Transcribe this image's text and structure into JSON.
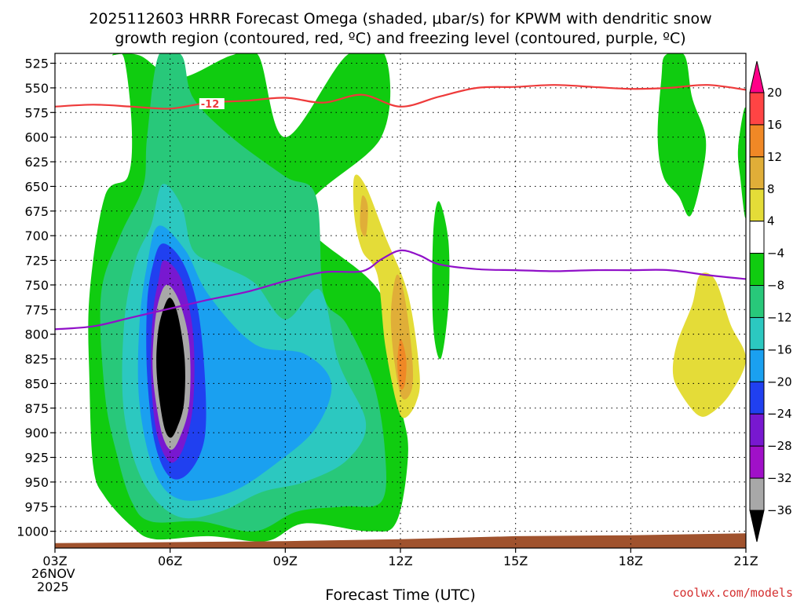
{
  "chart_data": {
    "type": "heatmap",
    "title_line1": "2025112603 HRRR Forecast Omega (shaded, μbar/s) for KPWM with dendritic snow",
    "title_line2": "growth region (contoured, red, ºC) and freezing level (contoured, purple, ºC)",
    "xlabel": "Forecast Time (UTC)",
    "x_ticks": [
      "03Z",
      "06Z",
      "09Z",
      "12Z",
      "15Z",
      "18Z",
      "21Z"
    ],
    "x_tick_hours": [
      3,
      6,
      9,
      12,
      15,
      18,
      21
    ],
    "x_date_line1": "26NOV",
    "x_date_line2": "2025",
    "xlim": [
      3,
      21
    ],
    "y_ticks": [
      "525",
      "550",
      "575",
      "600",
      "625",
      "650",
      "675",
      "700",
      "725",
      "750",
      "775",
      "800",
      "825",
      "850",
      "875",
      "900",
      "925",
      "950",
      "975",
      "1000"
    ],
    "y_tick_values": [
      525,
      550,
      575,
      600,
      625,
      650,
      675,
      700,
      725,
      750,
      775,
      800,
      825,
      850,
      875,
      900,
      925,
      950,
      975,
      1000
    ],
    "ylim": [
      515,
      1017
    ],
    "colorbar": {
      "labels": [
        "20",
        "16",
        "12",
        "8",
        "4",
        "−4",
        "−8",
        "−12",
        "−16",
        "−20",
        "−24",
        "−28",
        "−32",
        "−36"
      ],
      "colors_top_to_bottom": [
        "#ff0088",
        "#ff4444",
        "#f08826",
        "#e0ae38",
        "#e4dc38",
        "#ffffff",
        "#10cc10",
        "#28c87a",
        "#2cc8c0",
        "#1aa0f0",
        "#2040f0",
        "#7818d0",
        "#a010c8",
        "#a8a8a8",
        "#000000"
      ]
    },
    "dgz_contour": {
      "label": "-12",
      "color": "#ee3a3a",
      "points": [
        [
          3,
          569
        ],
        [
          4,
          567
        ],
        [
          5,
          569
        ],
        [
          6,
          571
        ],
        [
          7,
          565
        ],
        [
          8,
          563
        ],
        [
          9,
          560
        ],
        [
          10,
          565
        ],
        [
          11,
          557
        ],
        [
          12,
          569
        ],
        [
          13,
          559
        ],
        [
          14,
          550
        ],
        [
          15,
          549
        ],
        [
          16,
          547
        ],
        [
          17,
          549
        ],
        [
          18,
          551
        ],
        [
          19,
          550
        ],
        [
          20,
          547
        ],
        [
          21,
          552
        ]
      ]
    },
    "freezing_contour": {
      "color": "#9010c8",
      "points": [
        [
          3,
          795
        ],
        [
          4,
          792
        ],
        [
          5,
          783
        ],
        [
          6,
          774
        ],
        [
          7,
          765
        ],
        [
          8,
          757
        ],
        [
          9,
          746
        ],
        [
          10,
          737
        ],
        [
          11,
          736
        ],
        [
          11.5,
          724
        ],
        [
          12,
          715
        ],
        [
          12.5,
          720
        ],
        [
          13,
          729
        ],
        [
          14,
          734
        ],
        [
          15,
          735
        ],
        [
          16,
          736
        ],
        [
          17,
          735
        ],
        [
          18,
          735
        ],
        [
          19,
          735
        ],
        [
          20,
          740
        ],
        [
          21,
          744
        ]
      ]
    },
    "omega_regions": [
      {
        "value": -8,
        "color": "#10cc10",
        "points": [
          [
            4.5,
            517
          ],
          [
            5.2,
            517
          ],
          [
            6.2,
            540
          ],
          [
            7.6,
            517
          ],
          [
            8.3,
            517
          ],
          [
            9.0,
            600
          ],
          [
            10.6,
            517
          ],
          [
            11.6,
            517
          ],
          [
            11.5,
            600
          ],
          [
            9.5,
            680
          ],
          [
            11.5,
            760
          ],
          [
            12.0,
            870
          ],
          [
            12.2,
            920
          ],
          [
            11.9,
            990
          ],
          [
            11.2,
            1000
          ],
          [
            9.5,
            992
          ],
          [
            8.5,
            1010
          ],
          [
            7.0,
            1005
          ],
          [
            5.6,
            1008
          ],
          [
            5.0,
            995
          ],
          [
            4.3,
            965
          ],
          [
            4.0,
            935
          ],
          [
            3.9,
            850
          ],
          [
            3.9,
            760
          ],
          [
            4.3,
            660
          ],
          [
            4.9,
            640
          ],
          [
            5.0,
            590
          ],
          [
            4.8,
            520
          ]
        ]
      },
      {
        "value": -8,
        "color": "#10cc10",
        "points": [
          [
            13.0,
            665
          ],
          [
            13.25,
            705
          ],
          [
            13.25,
            770
          ],
          [
            13.05,
            825
          ],
          [
            12.85,
            790
          ],
          [
            12.85,
            700
          ]
        ]
      },
      {
        "value": -8,
        "color": "#10cc10",
        "points": [
          [
            18.9,
            517
          ],
          [
            19.4,
            517
          ],
          [
            19.6,
            560
          ],
          [
            19.95,
            600
          ],
          [
            19.85,
            640
          ],
          [
            19.55,
            680
          ],
          [
            19.25,
            660
          ],
          [
            18.85,
            640
          ],
          [
            18.7,
            600
          ],
          [
            18.8,
            540
          ]
        ]
      },
      {
        "value": -8,
        "color": "#10cc10",
        "points": [
          [
            21.0,
            572
          ],
          [
            21.0,
            680
          ],
          [
            20.85,
            640
          ],
          [
            20.8,
            610
          ]
        ]
      },
      {
        "value": -12,
        "color": "#28c87a",
        "points": [
          [
            5.7,
            517
          ],
          [
            6.3,
            517
          ],
          [
            6.6,
            560
          ],
          [
            7.6,
            600
          ],
          [
            9.0,
            640
          ],
          [
            9.8,
            660
          ],
          [
            10.0,
            760
          ],
          [
            10.6,
            790
          ],
          [
            11.3,
            850
          ],
          [
            11.6,
            920
          ],
          [
            11.5,
            970
          ],
          [
            10.5,
            975
          ],
          [
            9.3,
            980
          ],
          [
            8.2,
            1000
          ],
          [
            6.8,
            990
          ],
          [
            5.5,
            990
          ],
          [
            5.0,
            970
          ],
          [
            4.6,
            920
          ],
          [
            4.3,
            860
          ],
          [
            4.2,
            760
          ],
          [
            4.7,
            700
          ],
          [
            5.3,
            650
          ],
          [
            5.4,
            600
          ]
        ]
      },
      {
        "value": -16,
        "color": "#2cc8c0",
        "points": [
          [
            5.8,
            648
          ],
          [
            6.3,
            670
          ],
          [
            6.6,
            715
          ],
          [
            7.3,
            730
          ],
          [
            8.2,
            748
          ],
          [
            9.0,
            785
          ],
          [
            9.9,
            755
          ],
          [
            10.4,
            830
          ],
          [
            11.1,
            890
          ],
          [
            10.6,
            928
          ],
          [
            9.5,
            950
          ],
          [
            8.4,
            960
          ],
          [
            7.3,
            980
          ],
          [
            6.2,
            985
          ],
          [
            5.3,
            950
          ],
          [
            4.8,
            880
          ],
          [
            4.8,
            790
          ],
          [
            5.1,
            725
          ],
          [
            5.5,
            690
          ]
        ]
      },
      {
        "value": -20,
        "color": "#1aa0f0",
        "points": [
          [
            5.7,
            690
          ],
          [
            6.4,
            715
          ],
          [
            7.0,
            760
          ],
          [
            8.2,
            810
          ],
          [
            9.5,
            820
          ],
          [
            10.2,
            850
          ],
          [
            9.8,
            895
          ],
          [
            8.8,
            930
          ],
          [
            7.6,
            960
          ],
          [
            6.3,
            968
          ],
          [
            5.6,
            940
          ],
          [
            5.2,
            870
          ],
          [
            5.2,
            790
          ],
          [
            5.4,
            730
          ]
        ]
      },
      {
        "value": -24,
        "color": "#2040f0",
        "points": [
          [
            5.8,
            708
          ],
          [
            6.3,
            725
          ],
          [
            6.7,
            770
          ],
          [
            6.9,
            840
          ],
          [
            6.9,
            905
          ],
          [
            6.5,
            940
          ],
          [
            6.0,
            945
          ],
          [
            5.6,
            910
          ],
          [
            5.4,
            840
          ],
          [
            5.4,
            770
          ],
          [
            5.55,
            730
          ]
        ]
      },
      {
        "value": -28,
        "color": "#7818d0",
        "points": [
          [
            5.85,
            725
          ],
          [
            6.3,
            745
          ],
          [
            6.6,
            800
          ],
          [
            6.6,
            870
          ],
          [
            6.35,
            915
          ],
          [
            6.0,
            930
          ],
          [
            5.65,
            900
          ],
          [
            5.5,
            840
          ],
          [
            5.55,
            780
          ],
          [
            5.7,
            745
          ]
        ]
      },
      {
        "value": -32,
        "color": "#a8a8a8",
        "points": [
          [
            5.95,
            750
          ],
          [
            6.25,
            768
          ],
          [
            6.5,
            810
          ],
          [
            6.5,
            870
          ],
          [
            6.25,
            905
          ],
          [
            6.0,
            917
          ],
          [
            5.75,
            895
          ],
          [
            5.55,
            840
          ],
          [
            5.6,
            790
          ],
          [
            5.75,
            760
          ]
        ]
      },
      {
        "value": -36,
        "color": "#000000",
        "points": [
          [
            6.0,
            763
          ],
          [
            6.2,
            780
          ],
          [
            6.38,
            825
          ],
          [
            6.36,
            870
          ],
          [
            6.18,
            895
          ],
          [
            6.0,
            905
          ],
          [
            5.82,
            890
          ],
          [
            5.65,
            840
          ],
          [
            5.68,
            800
          ],
          [
            5.82,
            775
          ]
        ]
      },
      {
        "value": 4,
        "color": "#e4dc38",
        "points": [
          [
            10.8,
            640
          ],
          [
            11.1,
            650
          ],
          [
            11.6,
            700
          ],
          [
            12.2,
            760
          ],
          [
            12.5,
            840
          ],
          [
            12.4,
            870
          ],
          [
            12.1,
            885
          ],
          [
            11.9,
            870
          ],
          [
            11.6,
            810
          ],
          [
            11.4,
            740
          ],
          [
            11.0,
            715
          ],
          [
            10.8,
            680
          ]
        ]
      },
      {
        "value": 4,
        "color": "#e4dc38",
        "points": [
          [
            19.8,
            740
          ],
          [
            20.2,
            745
          ],
          [
            20.6,
            790
          ],
          [
            21.0,
            825
          ],
          [
            20.6,
            860
          ],
          [
            20.1,
            880
          ],
          [
            19.75,
            882
          ],
          [
            19.3,
            860
          ],
          [
            19.1,
            840
          ],
          [
            19.2,
            810
          ],
          [
            19.6,
            770
          ]
        ]
      },
      {
        "value": 8,
        "color": "#e0ae38",
        "points": [
          [
            11.0,
            660
          ],
          [
            11.15,
            670
          ],
          [
            11.1,
            700
          ],
          [
            10.95,
            690
          ]
        ]
      },
      {
        "value": 8,
        "color": "#e0ae38",
        "points": [
          [
            11.9,
            740
          ],
          [
            12.1,
            760
          ],
          [
            12.3,
            820
          ],
          [
            12.3,
            855
          ],
          [
            12.05,
            865
          ],
          [
            11.85,
            830
          ],
          [
            11.75,
            780
          ]
        ]
      },
      {
        "value": 12,
        "color": "#f08826",
        "points": [
          [
            12.0,
            805
          ],
          [
            12.15,
            825
          ],
          [
            12.12,
            850
          ],
          [
            12.0,
            855
          ],
          [
            11.92,
            830
          ]
        ]
      }
    ],
    "terrain": {
      "color": "#a0522d",
      "points": [
        [
          3,
          1012
        ],
        [
          6,
          1011
        ],
        [
          9,
          1010
        ],
        [
          12,
          1008
        ],
        [
          15,
          1005
        ],
        [
          18,
          1004
        ],
        [
          21,
          1002
        ]
      ]
    }
  },
  "credit": "coolwx.com/models"
}
